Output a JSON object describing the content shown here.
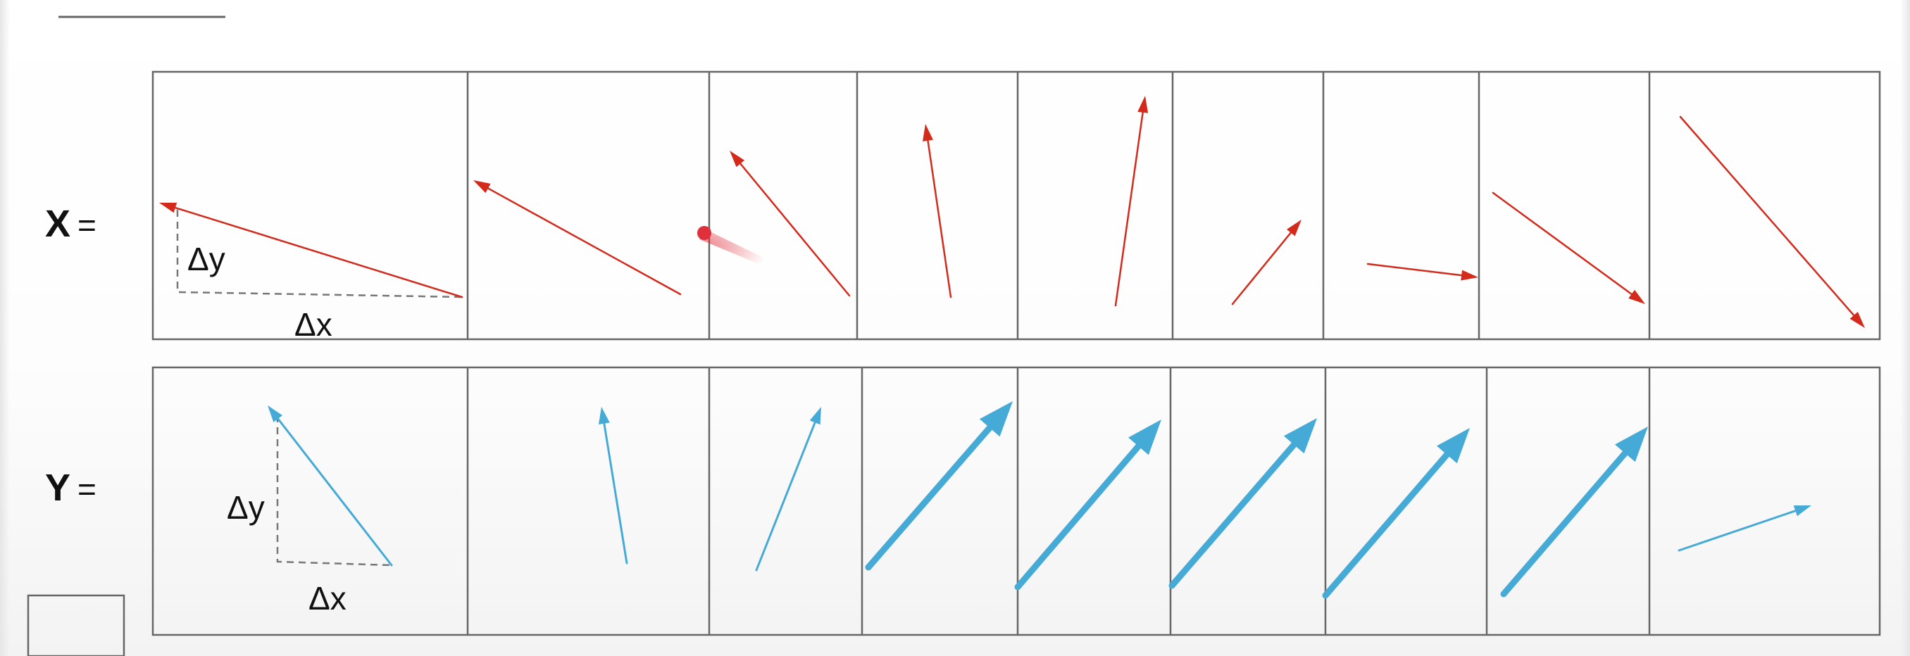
{
  "rows": [
    {
      "id": "x",
      "symbol": "X",
      "equals": "=",
      "color": "#d42a1c",
      "annotations": {
        "dy": "Δy",
        "dx": "Δx"
      }
    },
    {
      "id": "y",
      "symbol": "Y",
      "equals": "=",
      "color": "#45aad6",
      "annotations": {
        "dy": "Δy",
        "dx": "Δx"
      }
    }
  ],
  "colors": {
    "frame": "#666666",
    "dashed": "#777777",
    "laser_pointer": "#e0303c"
  },
  "icons": [
    "laser-pointer-icon",
    "corner-box-icon"
  ]
}
